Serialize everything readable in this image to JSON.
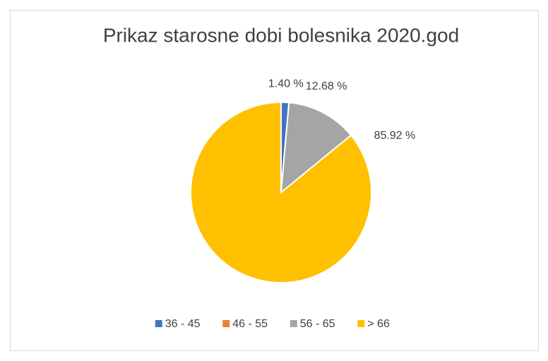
{
  "chart_data": {
    "type": "pie",
    "title": "Prikaz starosne dobi bolesnika 2020.god",
    "categories": [
      "36 - 45",
      "46 - 55",
      "56 - 65",
      "> 66"
    ],
    "values": [
      1.4,
      0,
      12.68,
      85.92
    ],
    "value_labels": [
      "1.40 %",
      null,
      "12.68 %",
      "85.92 %"
    ],
    "colors": [
      "#4472c4",
      "#ed7d31",
      "#a5a5a5",
      "#ffc000"
    ],
    "legend": "bottom"
  }
}
